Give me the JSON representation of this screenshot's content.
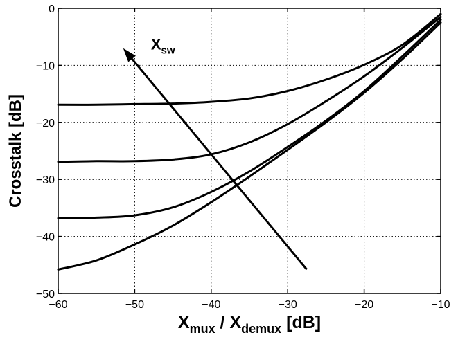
{
  "chart_data": {
    "type": "line",
    "xlabel": {
      "main1": "X",
      "sub1": "mux",
      "sep": " / ",
      "main2": "X",
      "sub2": "demux",
      "unit": " [dB]"
    },
    "ylabel": "Crosstalk [dB]",
    "xlim": [
      -60,
      -10
    ],
    "ylim": [
      -50,
      0
    ],
    "xticks": [
      -60,
      -50,
      -40,
      -30,
      -20,
      -10
    ],
    "yticks": [
      -50,
      -40,
      -30,
      -20,
      -10,
      0
    ],
    "xtick_labels": [
      "−60",
      "−50",
      "−40",
      "−30",
      "−20",
      "−10"
    ],
    "ytick_labels": [
      "−50",
      "−40",
      "−30",
      "−20",
      "−10",
      "0"
    ],
    "grid": true,
    "x": [
      -60,
      -55,
      -50,
      -45,
      -40,
      -35,
      -30,
      -25,
      -20,
      -15,
      -10
    ],
    "series": [
      {
        "values": [
          -16.9,
          -16.9,
          -16.8,
          -16.7,
          -16.4,
          -15.8,
          -14.5,
          -12.5,
          -9.9,
          -6.4,
          -1.0
        ]
      },
      {
        "values": [
          -26.9,
          -26.8,
          -26.8,
          -26.5,
          -25.6,
          -23.5,
          -20.3,
          -16.3,
          -11.9,
          -6.9,
          -1.5
        ]
      },
      {
        "values": [
          -36.8,
          -36.7,
          -36.3,
          -34.9,
          -32.2,
          -28.6,
          -24.3,
          -19.7,
          -14.5,
          -8.4,
          -2.0
        ]
      },
      {
        "values": [
          -45.8,
          -44.2,
          -41.4,
          -38.1,
          -34.0,
          -29.5,
          -24.8,
          -20.0,
          -14.8,
          -8.9,
          -2.5
        ]
      }
    ],
    "annotation": {
      "text_main": "X",
      "text_sub": "sw",
      "arrow_from": [
        -27.5,
        -45.8
      ],
      "arrow_to": [
        -51.5,
        -7.0
      ]
    }
  }
}
